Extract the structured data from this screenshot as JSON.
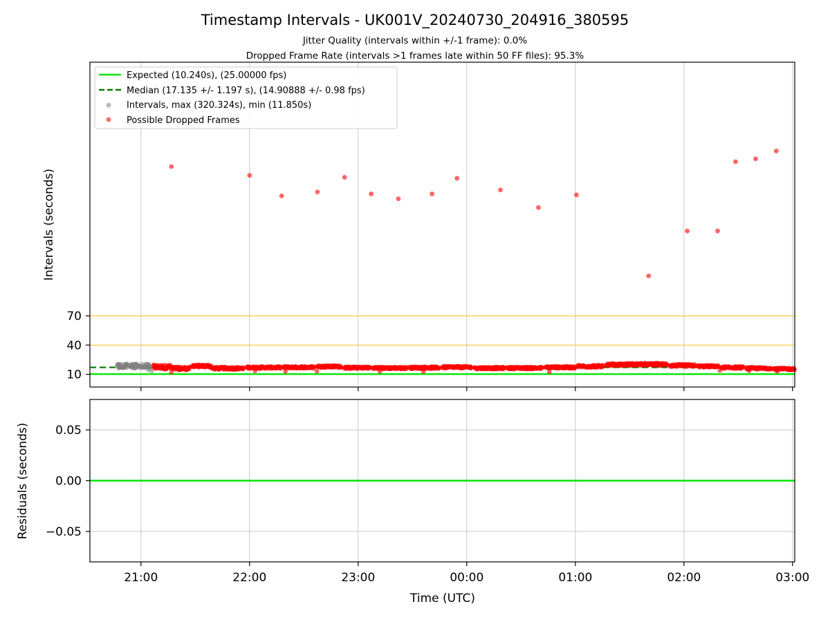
{
  "chart_data": [
    {
      "type": "scatter",
      "title": "Timestamp Intervals - UK001V_20240730_204916_380595",
      "subtitle_lines": [
        "Jitter Quality (intervals within +/-1 frame): 0.0%",
        "Dropped Frame Rate (intervals >1 frames late within 50 FF files): 95.3%"
      ],
      "ylabel": "Intervals (seconds)",
      "x_tick_labels": [
        "21:00",
        "22:00",
        "23:00",
        "00:00",
        "01:00",
        "02:00",
        "03:00"
      ],
      "x_ticks_hours": [
        0.5,
        1.5,
        2.5,
        3.5,
        4.5,
        5.5,
        6.5
      ],
      "xlim_hours": [
        0.03,
        6.52
      ],
      "y_ticks": [
        10,
        40,
        70
      ],
      "ylim": [
        -3,
        330
      ],
      "grid": true,
      "legend_placement": "top-left",
      "legend": [
        {
          "label": "Expected (10.240s), (25.00000 fps)",
          "style": "solid-line",
          "color": "#00e600"
        },
        {
          "label": "Median (17.135 +/- 1.197 s), (14.90888 +/- 0.98 fps)",
          "style": "dashed-line",
          "color": "#007a00"
        },
        {
          "label": "Intervals, max (320.324s), min (11.850s)",
          "style": "marker",
          "color": "#808080"
        },
        {
          "label": "Possible Dropped Frames",
          "style": "marker",
          "color": "#ff0000"
        }
      ],
      "expected_interval": 10.24,
      "median_interval": 17.135,
      "threshold_lines": [
        40,
        70
      ],
      "threshold_color": "#f5c842",
      "series": [
        {
          "name": "Possible Dropped Frames",
          "x_hours": [
            0.78,
            1.5,
            1.795,
            2.125,
            2.375,
            2.62,
            2.87,
            3.18,
            3.41,
            3.81,
            4.16,
            4.51,
            5.175,
            5.53,
            5.81,
            5.975,
            6.16
          ],
          "y": [
            223,
            214,
            193,
            197,
            212,
            195,
            190,
            195,
            211,
            199,
            181,
            194,
            111,
            157,
            157,
            228,
            231
          ]
        },
        {
          "name": "Possible Dropped Frames (late points)",
          "x_hours": [
            6.35
          ],
          "y": [
            239
          ]
        }
      ]
    },
    {
      "type": "line",
      "xlabel": "Time (UTC)",
      "ylabel": "Residuals (seconds)",
      "x_tick_labels": [
        "21:00",
        "22:00",
        "23:00",
        "00:00",
        "01:00",
        "02:00",
        "03:00"
      ],
      "y_tick_labels": [
        "0.05",
        "0.00",
        "−0.05"
      ],
      "y_ticks": [
        0.05,
        0.0,
        -0.05
      ],
      "ylim": [
        -0.08,
        0.08
      ],
      "grid": true,
      "series": [
        {
          "name": "Residuals",
          "x_hours": [
            0.03,
            6.52
          ],
          "y": [
            0.0,
            0.0
          ]
        }
      ]
    }
  ]
}
